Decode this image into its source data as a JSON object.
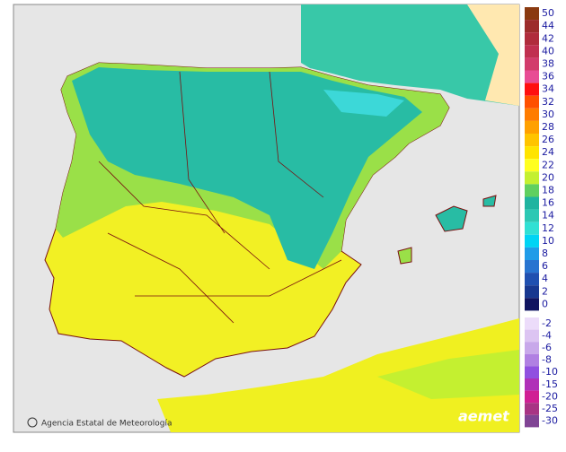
{
  "map": {
    "credit": "Agencia Estatal de Meteorología",
    "logo": "aemet"
  },
  "legend": {
    "items": [
      {
        "label": "50",
        "color": "#8a3a10"
      },
      {
        "label": "44",
        "color": "#9c2c2c"
      },
      {
        "label": "42",
        "color": "#b02c3c"
      },
      {
        "label": "40",
        "color": "#c03050"
      },
      {
        "label": "38",
        "color": "#d23c6c"
      },
      {
        "label": "36",
        "color": "#e84c94"
      },
      {
        "label": "34",
        "color": "#ff1010"
      },
      {
        "label": "32",
        "color": "#ff5000"
      },
      {
        "label": "30",
        "color": "#ff7c00"
      },
      {
        "label": "28",
        "color": "#ffa000"
      },
      {
        "label": "26",
        "color": "#ffc400"
      },
      {
        "label": "24",
        "color": "#ffe400"
      },
      {
        "label": "22",
        "color": "#ffff20"
      },
      {
        "label": "20",
        "color": "#c4f030"
      },
      {
        "label": "18",
        "color": "#60d060"
      },
      {
        "label": "16",
        "color": "#20b4a0"
      },
      {
        "label": "14",
        "color": "#2cc8b4"
      },
      {
        "label": "12",
        "color": "#30e0d4"
      },
      {
        "label": "10",
        "color": "#00d4f4"
      },
      {
        "label": "8",
        "color": "#209ce8"
      },
      {
        "label": "6",
        "color": "#2874d0"
      },
      {
        "label": "4",
        "color": "#2050b0"
      },
      {
        "label": "2",
        "color": "#183890"
      },
      {
        "label": "0",
        "color": "#101460"
      }
    ],
    "negative_items": [
      {
        "label": "-2",
        "color": "#ecdcfa"
      },
      {
        "label": "-4",
        "color": "#dcc4f2"
      },
      {
        "label": "-6",
        "color": "#c8a8ea"
      },
      {
        "label": "-8",
        "color": "#b080e2"
      },
      {
        "label": "-10",
        "color": "#9050e0"
      },
      {
        "label": "-15",
        "color": "#b030b8"
      },
      {
        "label": "-20",
        "color": "#d02094"
      },
      {
        "label": "-25",
        "color": "#a83484"
      },
      {
        "label": "-30",
        "color": "#804494"
      }
    ]
  }
}
